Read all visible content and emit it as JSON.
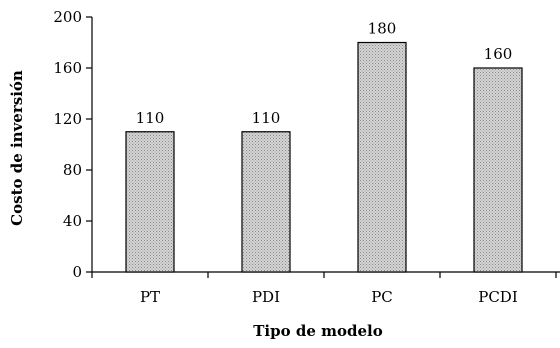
{
  "chart_data": {
    "type": "bar",
    "categories": [
      "PT",
      "PDI",
      "PC",
      "PCDI"
    ],
    "values": [
      110,
      110,
      180,
      160
    ],
    "data_labels": [
      "110",
      "110",
      "180",
      "160"
    ],
    "title": "",
    "xlabel": "Tipo de modelo",
    "ylabel": "Costo de inversión",
    "ylim": [
      0,
      200
    ],
    "yticks": [
      0,
      40,
      80,
      120,
      160,
      200
    ],
    "ytick_labels": [
      "0",
      "40",
      "80",
      "120",
      "160",
      "200"
    ],
    "grid": false,
    "legend": "none",
    "bar_color": "#c8c8c8",
    "bar_pattern": "dotted-gray"
  }
}
